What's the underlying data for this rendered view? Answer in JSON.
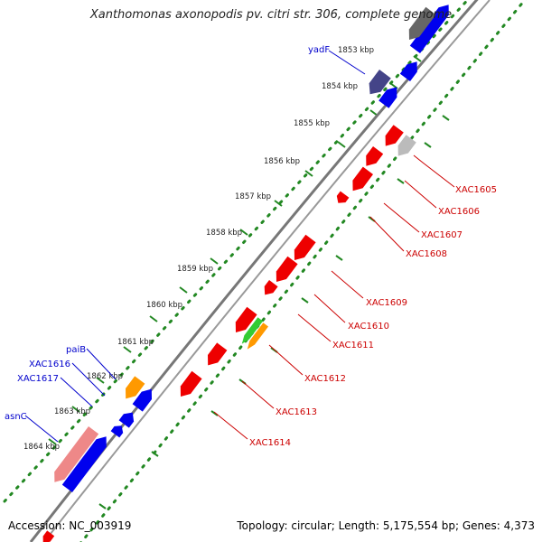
{
  "title": "Xanthomonas axonopodis pv. citri str. 306, complete genome",
  "footer": {
    "accession": "Accession: NC_003919",
    "summary": "Topology: circular; Length: 5,175,554 bp; Genes: 4,373"
  },
  "colors": {
    "forward": "#0000ee",
    "reverse": "#ee0000",
    "rna": "#ff9900",
    "rna_alt": "#33cc33",
    "pseudo_fwd": "#ee8888",
    "hypo": "#bbbbbb",
    "other": "#444488",
    "dotted": "#228822",
    "label_blue": "#0000cc",
    "label_red": "#cc0000"
  },
  "ticks": [
    "1853 kbp",
    "1854 kbp",
    "1855 kbp",
    "1856 kbp",
    "1857 kbp",
    "1858 kbp",
    "1859 kbp",
    "1860 kbp",
    "1861 kbp",
    "1862 kbp",
    "1863 kbp",
    "1864 kbp"
  ],
  "left_labels": [
    "yadF",
    "paiB",
    "XAC1616",
    "XAC1617",
    "asnC"
  ],
  "right_labels": [
    "XAC1605",
    "XAC1606",
    "XAC1607",
    "XAC1608",
    "XAC1609",
    "XAC1610",
    "XAC1611",
    "XAC1612",
    "XAC1613",
    "XAC1614"
  ]
}
